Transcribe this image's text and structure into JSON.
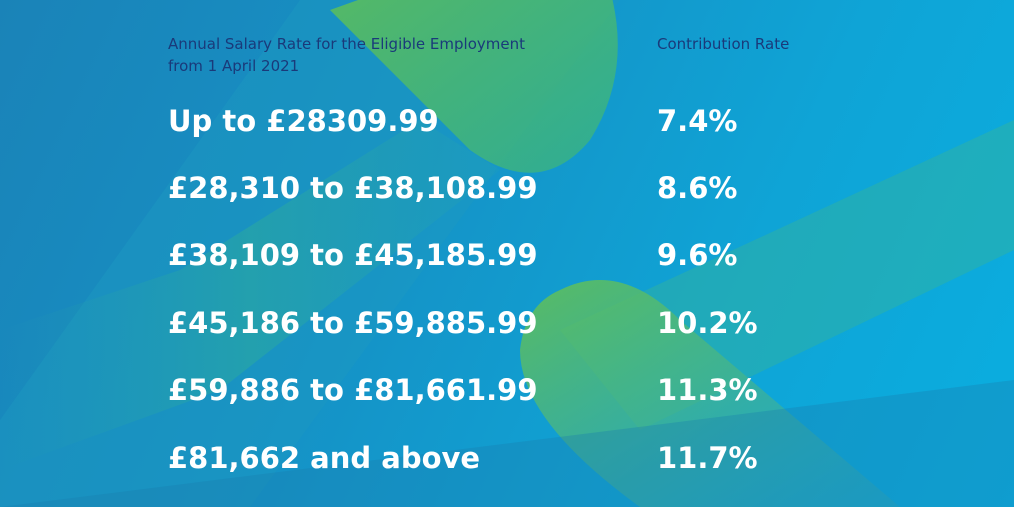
{
  "headers": {
    "salary_line1": "Annual Salary Rate for the Eligible Employment",
    "salary_line2": "from 1 April 2021",
    "rate": "Contribution Rate"
  },
  "rows": [
    {
      "band": "Up to £28309.99",
      "rate": "7.4%"
    },
    {
      "band": "£28,310 to £38,108.99",
      "rate": "8.6%"
    },
    {
      "band": "£38,109 to £45,185.99",
      "rate": "9.6%"
    },
    {
      "band": "£45,186 to £59,885.99",
      "rate": "10.2%"
    },
    {
      "band": "£59,886 to £81,661.99",
      "rate": "11.3%"
    },
    {
      "band": "£81,662 and above",
      "rate": "11.7%"
    }
  ],
  "colors": {
    "header_text": "#1a3a7a",
    "value_text": "#ffffff",
    "accent_green": "#5cbf55",
    "background_blue": "#1690c4"
  }
}
